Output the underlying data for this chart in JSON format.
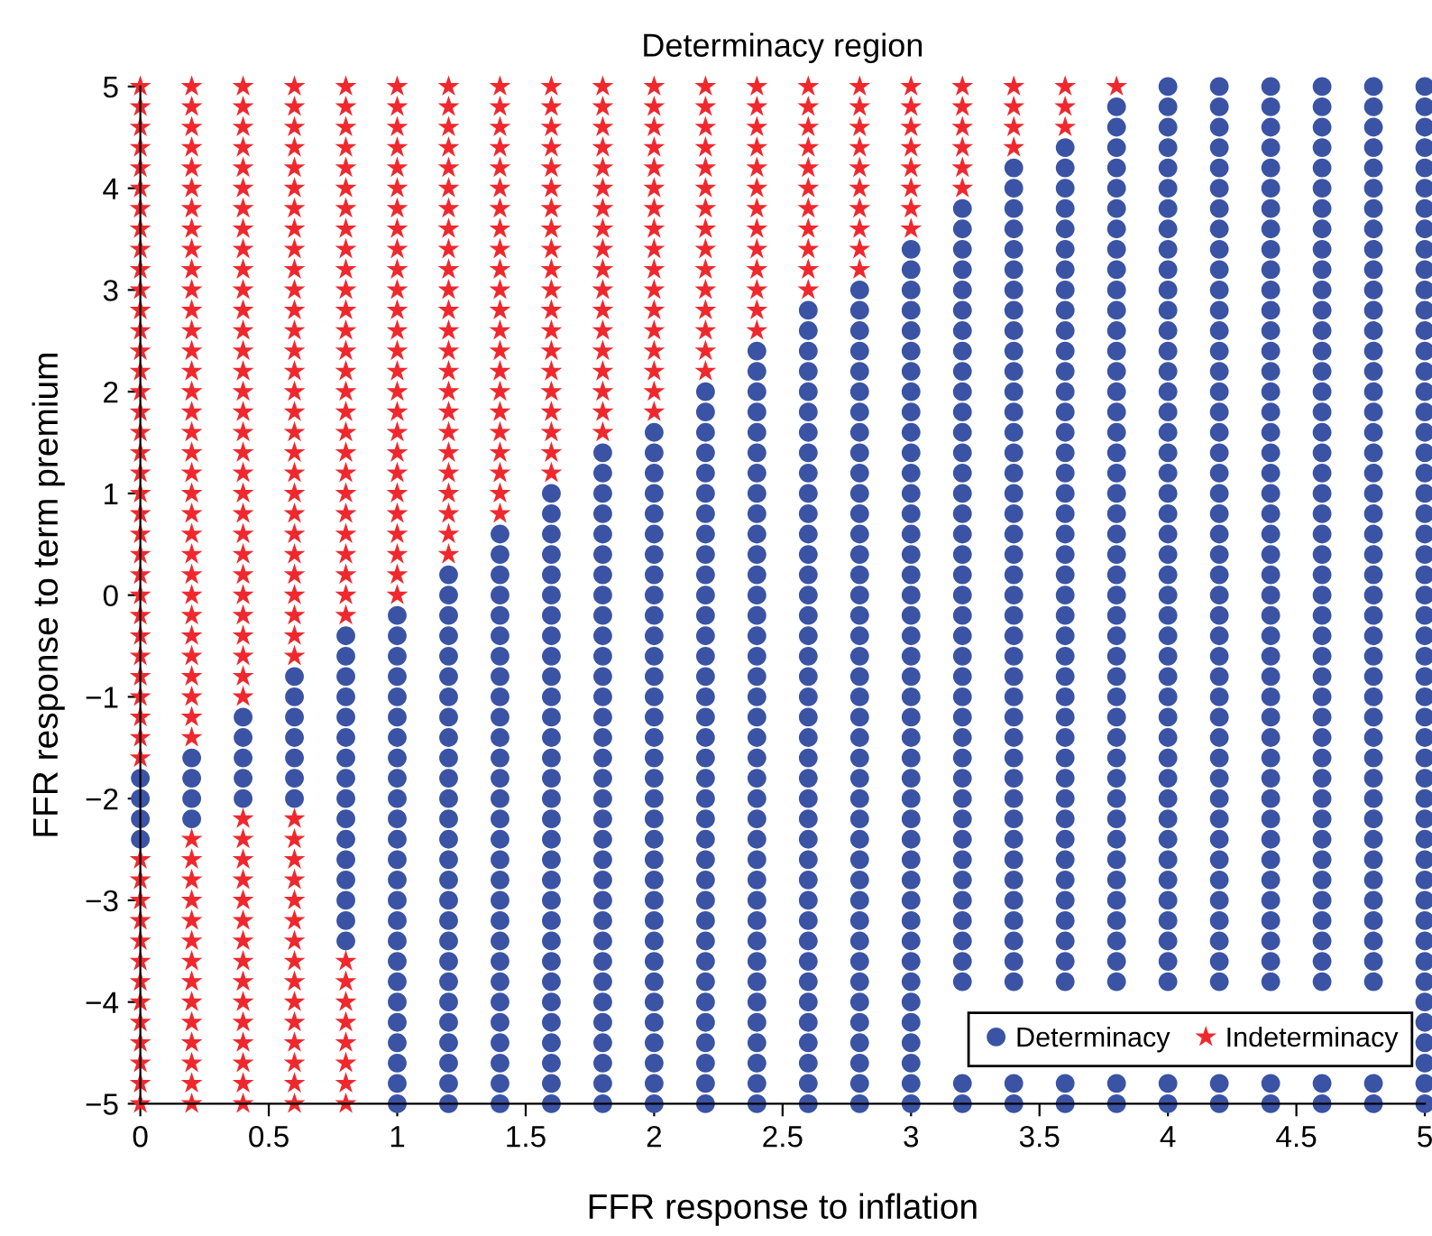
{
  "chart_data": {
    "type": "scatter",
    "title": "Determinacy region",
    "xlabel": "FFR response to inflation",
    "ylabel": "FFR response to term premium",
    "xlim": [
      0,
      5
    ],
    "ylim": [
      -5,
      5
    ],
    "xticks": [
      0,
      0.5,
      1,
      1.5,
      2,
      2.5,
      3,
      3.5,
      4,
      4.5,
      5
    ],
    "yticks": [
      {
        "value": -5,
        "label": "−5"
      },
      {
        "value": -4,
        "label": "−4"
      },
      {
        "value": -3,
        "label": "−3"
      },
      {
        "value": -2,
        "label": "−2"
      },
      {
        "value": -1,
        "label": "−1"
      },
      0,
      1,
      2,
      3,
      4,
      5
    ],
    "grid": false,
    "legend": "bottom right",
    "series": [
      {
        "name": "Determinacy",
        "color": "#3a53a4",
        "marker": "circle",
        "x": [
          0,
          0,
          0,
          0,
          0.2,
          0.2,
          0.2,
          0.2,
          0.4,
          0.4,
          0.4,
          0.4,
          0.4,
          0.6,
          0.6,
          0.6,
          0.6,
          0.6,
          0.6,
          0.6,
          0.8,
          0.8,
          0.8,
          0.8,
          0.8,
          0.8,
          0.8,
          0.8,
          0.8,
          0.8,
          0.8,
          0.8,
          0.8,
          0.8,
          0.8,
          0.8,
          1,
          1,
          1,
          1,
          1,
          1,
          1,
          1,
          1,
          1,
          1,
          1,
          1,
          1,
          1,
          1,
          1,
          1,
          1,
          1,
          1,
          1,
          1,
          1,
          1,
          1.2,
          1.2,
          1.2,
          1.2,
          1.2,
          1.2,
          1.2,
          1.2,
          1.2,
          1.2,
          1.2,
          1.2,
          1.2,
          1.2,
          1.2,
          1.2,
          1.2,
          1.2,
          1.2,
          1.2,
          1.2,
          1.2,
          1.2,
          1.2,
          1.2,
          1.2,
          1.2,
          1.4,
          1.4,
          1.4,
          1.4,
          1.4,
          1.4,
          1.4,
          1.4,
          1.4,
          1.4,
          1.4,
          1.4,
          1.4,
          1.4,
          1.4,
          1.4,
          1.4,
          1.4,
          1.4,
          1.4,
          1.4,
          1.4,
          1.4,
          1.4,
          1.4,
          1.4,
          1.4,
          1.4,
          1.4,
          1.6,
          1.6,
          1.6,
          1.6,
          1.6,
          1.6,
          1.6,
          1.6,
          1.6,
          1.6,
          1.6,
          1.6,
          1.6,
          1.6,
          1.6,
          1.6,
          1.6,
          1.6,
          1.6,
          1.6,
          1.6,
          1.6,
          1.6,
          1.6,
          1.6,
          1.6,
          1.6,
          1.6,
          1.6,
          1.6,
          1.6,
          1.8,
          1.8,
          1.8,
          1.8,
          1.8,
          1.8,
          1.8,
          1.8,
          1.8,
          1.8,
          1.8,
          1.8,
          1.8,
          1.8,
          1.8,
          1.8,
          1.8,
          1.8,
          1.8,
          1.8,
          1.8,
          1.8,
          1.8,
          1.8,
          1.8,
          1.8,
          1.8,
          1.8,
          1.8,
          1.8,
          1.8,
          1.8,
          1.8,
          2,
          2,
          2,
          2,
          2,
          2,
          2,
          2,
          2,
          2,
          2,
          2,
          2,
          2,
          2,
          2,
          2,
          2,
          2,
          2,
          2,
          2,
          2,
          2,
          2,
          2,
          2,
          2,
          2,
          2,
          2,
          2,
          2,
          2,
          2.2,
          2.2,
          2.2,
          2.2,
          2.2,
          2.2,
          2.2,
          2.2,
          2.2,
          2.2,
          2.2,
          2.2,
          2.2,
          2.2,
          2.2,
          2.2,
          2.2,
          2.2,
          2.2,
          2.2,
          2.2,
          2.2,
          2.2,
          2.2,
          2.2,
          2.2,
          2.2,
          2.2,
          2.2,
          2.2,
          2.2,
          2.2,
          2.2,
          2.2,
          2.2,
          2.2,
          2.4,
          2.4,
          2.4,
          2.4,
          2.4,
          2.4,
          2.4,
          2.4,
          2.4,
          2.4,
          2.4,
          2.4,
          2.4,
          2.4,
          2.4,
          2.4,
          2.4,
          2.4,
          2.4,
          2.4,
          2.4,
          2.4,
          2.4,
          2.4,
          2.4,
          2.4,
          2.4,
          2.4,
          2.4,
          2.4,
          2.4,
          2.4,
          2.4,
          2.4,
          2.4,
          2.4,
          2.4,
          2.4,
          2.6,
          2.6,
          2.6,
          2.6,
          2.6,
          2.6,
          2.6,
          2.6,
          2.6,
          2.6,
          2.6,
          2.6,
          2.6,
          2.6,
          2.6,
          2.6,
          2.6,
          2.6,
          2.6,
          2.6,
          2.6,
          2.6,
          2.6,
          2.6,
          2.6,
          2.6,
          2.6,
          2.6,
          2.6,
          2.6,
          2.6,
          2.6,
          2.6,
          2.6,
          2.6,
          2.6,
          2.6,
          2.6,
          2.6,
          2.6,
          2.8,
          2.8,
          2.8,
          2.8,
          2.8,
          2.8,
          2.8,
          2.8,
          2.8,
          2.8,
          2.8,
          2.8,
          2.8,
          2.8,
          2.8,
          2.8,
          2.8,
          2.8,
          2.8,
          2.8,
          2.8,
          2.8,
          2.8,
          2.8,
          2.8,
          2.8,
          2.8,
          2.8,
          2.8,
          2.8,
          2.8,
          2.8,
          2.8,
          2.8,
          2.8,
          2.8,
          2.8,
          2.8,
          2.8,
          2.8,
          2.8,
          3,
          3,
          3,
          3,
          3,
          3,
          3,
          3,
          3,
          3,
          3,
          3,
          3,
          3,
          3,
          3,
          3,
          3,
          3,
          3,
          3,
          3,
          3,
          3,
          3,
          3,
          3,
          3,
          3,
          3,
          3,
          3,
          3,
          3,
          3,
          3,
          3,
          3,
          3,
          3,
          3,
          3,
          3,
          3.2,
          3.2,
          3.2,
          3.2,
          3.2,
          3.2,
          3.2,
          3.2,
          3.2,
          3.2,
          3.2,
          3.2,
          3.2,
          3.2,
          3.2,
          3.2,
          3.2,
          3.2,
          3.2,
          3.2,
          3.2,
          3.2,
          3.2,
          3.2,
          3.2,
          3.2,
          3.2,
          3.2,
          3.2,
          3.2,
          3.2,
          3.2,
          3.2,
          3.2,
          3.2,
          3.2,
          3.2,
          3.2,
          3.2,
          3.2,
          3.2,
          3.4,
          3.4,
          3.4,
          3.4,
          3.4,
          3.4,
          3.4,
          3.4,
          3.4,
          3.4,
          3.4,
          3.4,
          3.4,
          3.4,
          3.4,
          3.4,
          3.4,
          3.4,
          3.4,
          3.4,
          3.4,
          3.4,
          3.4,
          3.4,
          3.4,
          3.4,
          3.4,
          3.4,
          3.4,
          3.4,
          3.4,
          3.4,
          3.4,
          3.4,
          3.4,
          3.4,
          3.4,
          3.4,
          3.4,
          3.4,
          3.4,
          3.4,
          3.4,
          3.6,
          3.6,
          3.6,
          3.6,
          3.6,
          3.6,
          3.6,
          3.6,
          3.6,
          3.6,
          3.6,
          3.6,
          3.6,
          3.6,
          3.6,
          3.6,
          3.6,
          3.6,
          3.6,
          3.6,
          3.6,
          3.6,
          3.6,
          3.6,
          3.6,
          3.6,
          3.6,
          3.6,
          3.6,
          3.6,
          3.6,
          3.6,
          3.6,
          3.6,
          3.6,
          3.6,
          3.6,
          3.6,
          3.6,
          3.6,
          3.6,
          3.6,
          3.6,
          3.6,
          3.8,
          3.8,
          3.8,
          3.8,
          3.8,
          3.8,
          3.8,
          3.8,
          3.8,
          3.8,
          3.8,
          3.8,
          3.8,
          3.8,
          3.8,
          3.8,
          3.8,
          3.8,
          3.8,
          3.8,
          3.8,
          3.8,
          3.8,
          3.8,
          3.8,
          3.8,
          3.8,
          3.8,
          3.8,
          3.8,
          3.8,
          3.8,
          3.8,
          3.8,
          3.8,
          3.8,
          3.8,
          3.8,
          3.8,
          3.8,
          3.8,
          3.8,
          3.8,
          3.8,
          3.8,
          3.8,
          4,
          4,
          4,
          4,
          4,
          4,
          4,
          4,
          4,
          4,
          4,
          4,
          4,
          4,
          4,
          4,
          4,
          4,
          4,
          4,
          4,
          4,
          4,
          4,
          4,
          4,
          4,
          4,
          4,
          4,
          4,
          4,
          4,
          4,
          4,
          4,
          4,
          4,
          4,
          4,
          4,
          4,
          4,
          4,
          4,
          4,
          4,
          4.2,
          4.2,
          4.2,
          4.2,
          4.2,
          4.2,
          4.2,
          4.2,
          4.2,
          4.2,
          4.2,
          4.2,
          4.2,
          4.2,
          4.2,
          4.2,
          4.2,
          4.2,
          4.2,
          4.2,
          4.2,
          4.2,
          4.2,
          4.2,
          4.2,
          4.2,
          4.2,
          4.2,
          4.2,
          4.2,
          4.2,
          4.2,
          4.2,
          4.2,
          4.2,
          4.2,
          4.2,
          4.2,
          4.2,
          4.2,
          4.2,
          4.2,
          4.2,
          4.2,
          4.2,
          4.2,
          4.2,
          4.4,
          4.4,
          4.4,
          4.4,
          4.4,
          4.4,
          4.4,
          4.4,
          4.4,
          4.4,
          4.4,
          4.4,
          4.4,
          4.4,
          4.4,
          4.4,
          4.4,
          4.4,
          4.4,
          4.4,
          4.4,
          4.4,
          4.4,
          4.4,
          4.4,
          4.4,
          4.4,
          4.4,
          4.4,
          4.4,
          4.4,
          4.4,
          4.4,
          4.4,
          4.4,
          4.4,
          4.4,
          4.4,
          4.4,
          4.4,
          4.4,
          4.4,
          4.4,
          4.4,
          4.4,
          4.4,
          4.4,
          4.6,
          4.6,
          4.6,
          4.6,
          4.6,
          4.6,
          4.6,
          4.6,
          4.6,
          4.6,
          4.6,
          4.6,
          4.6,
          4.6,
          4.6,
          4.6,
          4.6,
          4.6,
          4.6,
          4.6,
          4.6,
          4.6,
          4.6,
          4.6,
          4.6,
          4.6,
          4.6,
          4.6,
          4.6,
          4.6,
          4.6,
          4.6,
          4.6,
          4.6,
          4.6,
          4.6,
          4.6,
          4.6,
          4.6,
          4.6,
          4.6,
          4.6,
          4.6,
          4.6,
          4.6,
          4.6,
          4.6,
          4.8,
          4.8,
          4.8,
          4.8,
          4.8,
          4.8,
          4.8,
          4.8,
          4.8,
          4.8,
          4.8,
          4.8,
          4.8,
          4.8,
          4.8,
          4.8,
          4.8,
          4.8,
          4.8,
          4.8,
          4.8,
          4.8,
          4.8,
          4.8,
          4.8,
          4.8,
          4.8,
          4.8,
          4.8,
          4.8,
          4.8,
          4.8,
          4.8,
          4.8,
          4.8,
          4.8,
          4.8,
          4.8,
          4.8,
          4.8,
          4.8,
          4.8,
          4.8,
          4.8,
          4.8,
          4.8,
          4.8,
          5,
          5,
          5,
          5,
          5,
          5,
          5,
          5,
          5,
          5,
          5,
          5,
          5,
          5,
          5,
          5,
          5,
          5,
          5,
          5,
          5,
          5,
          5,
          5,
          5,
          5,
          5,
          5,
          5,
          5,
          5,
          5,
          5,
          5,
          5,
          5,
          5,
          5,
          5,
          5,
          5,
          5,
          5,
          5,
          5,
          5,
          5,
          5,
          5,
          5,
          5
        ],
        "values": [
          -2.4,
          -2.2,
          -2,
          -1.8,
          -2.2,
          -2,
          -1.8,
          -1.6,
          -2,
          -1.8,
          -1.6,
          -1.4,
          -1.2,
          -2,
          -1.8,
          -1.6,
          -1.4,
          -1.2,
          -1,
          -0.8,
          -3.4,
          -3.2,
          -3,
          -2.8,
          -2.6,
          -2.4,
          -2.2,
          -2,
          -1.8,
          -1.6,
          -1.4,
          -1.2,
          -1,
          -0.8,
          -0.6,
          -0.4,
          -5,
          -4.8,
          -4.6,
          -4.4,
          -4.2,
          -4,
          -3.8,
          -3.6,
          -3.4,
          -3.2,
          -3,
          -2.8,
          -2.6,
          -2.4,
          -2.2,
          -2,
          -1.8,
          -1.6,
          -1.4,
          -1.2,
          -1,
          -0.8,
          -0.6,
          -0.4,
          -0.2,
          -5,
          -4.8,
          -4.6,
          -4.4,
          -4.2,
          -4,
          -3.8,
          -3.6,
          -3.4,
          -3.2,
          -3,
          -2.8,
          -2.6,
          -2.4,
          -2.2,
          -2,
          -1.8,
          -1.6,
          -1.4,
          -1.2,
          -1,
          -0.8,
          -0.6,
          -0.4,
          -0.2,
          0,
          0.2,
          -5,
          -4.8,
          -4.6,
          -4.4,
          -4.2,
          -4,
          -3.8,
          -3.6,
          -3.4,
          -3.2,
          -3,
          -2.8,
          -2.6,
          -2.4,
          -2.2,
          -2,
          -1.8,
          -1.6,
          -1.4,
          -1.2,
          -1,
          -0.8,
          -0.6,
          -0.4,
          -0.2,
          0,
          0.2,
          0.4,
          0.6,
          -5,
          -4.8,
          -4.6,
          -4.4,
          -4.2,
          -4,
          -3.8,
          -3.6,
          -3.4,
          -3.2,
          -3,
          -2.8,
          -2.6,
          -2.4,
          -2.2,
          -2,
          -1.8,
          -1.6,
          -1.4,
          -1.2,
          -1,
          -0.8,
          -0.6,
          -0.4,
          -0.2,
          0,
          0.2,
          0.4,
          0.6,
          0.8,
          1,
          -5,
          -4.8,
          -4.6,
          -4.4,
          -4.2,
          -4,
          -3.8,
          -3.6,
          -3.4,
          -3.2,
          -3,
          -2.8,
          -2.6,
          -2.4,
          -2.2,
          -2,
          -1.8,
          -1.6,
          -1.4,
          -1.2,
          -1,
          -0.8,
          -0.6,
          -0.4,
          -0.2,
          0,
          0.2,
          0.4,
          0.6,
          0.8,
          1,
          1.2,
          1.4,
          -5,
          -4.8,
          -4.6,
          -4.4,
          -4.2,
          -4,
          -3.8,
          -3.6,
          -3.4,
          -3.2,
          -3,
          -2.8,
          -2.6,
          -2.4,
          -2.2,
          -2,
          -1.8,
          -1.6,
          -1.4,
          -1.2,
          -1,
          -0.8,
          -0.6,
          -0.4,
          -0.2,
          0,
          0.2,
          0.4,
          0.6,
          0.8,
          1,
          1.2,
          1.4,
          1.6,
          -5,
          -4.8,
          -4.6,
          -4.4,
          -4.2,
          -4,
          -3.8,
          -3.6,
          -3.4,
          -3.2,
          -3,
          -2.8,
          -2.6,
          -2.4,
          -2.2,
          -2,
          -1.8,
          -1.6,
          -1.4,
          -1.2,
          -1,
          -0.8,
          -0.6,
          -0.4,
          -0.2,
          0,
          0.2,
          0.4,
          0.6,
          0.8,
          1,
          1.2,
          1.4,
          1.6,
          1.8,
          2,
          -5,
          -4.8,
          -4.6,
          -4.4,
          -4.2,
          -4,
          -3.8,
          -3.6,
          -3.4,
          -3.2,
          -3,
          -2.8,
          -2.6,
          -2.4,
          -2.2,
          -2,
          -1.8,
          -1.6,
          -1.4,
          -1.2,
          -1,
          -0.8,
          -0.6,
          -0.4,
          -0.2,
          0,
          0.2,
          0.4,
          0.6,
          0.8,
          1,
          1.2,
          1.4,
          1.6,
          1.8,
          2,
          2.2,
          2.4,
          -5,
          -4.8,
          -4.6,
          -4.4,
          -4.2,
          -4,
          -3.8,
          -3.6,
          -3.4,
          -3.2,
          -3,
          -2.8,
          -2.6,
          -2.4,
          -2.2,
          -2,
          -1.8,
          -1.6,
          -1.4,
          -1.2,
          -1,
          -0.8,
          -0.6,
          -0.4,
          -0.2,
          0,
          0.2,
          0.4,
          0.6,
          0.8,
          1,
          1.2,
          1.4,
          1.6,
          1.8,
          2,
          2.2,
          2.4,
          2.6,
          2.8,
          -5,
          -4.8,
          -4.6,
          -4.4,
          -4.2,
          -4,
          -3.8,
          -3.6,
          -3.4,
          -3.2,
          -3,
          -2.8,
          -2.6,
          -2.4,
          -2.2,
          -2,
          -1.8,
          -1.6,
          -1.4,
          -1.2,
          -1,
          -0.8,
          -0.6,
          -0.4,
          -0.2,
          0,
          0.2,
          0.4,
          0.6,
          0.8,
          1,
          1.2,
          1.4,
          1.6,
          1.8,
          2,
          2.2,
          2.4,
          2.6,
          2.8,
          3,
          -5,
          -4.8,
          -4.6,
          -4.4,
          -4.2,
          -4,
          -3.8,
          -3.6,
          -3.4,
          -3.2,
          -3,
          -2.8,
          -2.6,
          -2.4,
          -2.2,
          -2,
          -1.8,
          -1.6,
          -1.4,
          -1.2,
          -1,
          -0.8,
          -0.6,
          -0.4,
          -0.2,
          0,
          0.2,
          0.4,
          0.6,
          0.8,
          1,
          1.2,
          1.4,
          1.6,
          1.8,
          2,
          2.2,
          2.4,
          2.6,
          2.8,
          3,
          3.2,
          3.4,
          -5,
          -4.8,
          -3.8,
          -3.6,
          -3.4,
          -3.2,
          -3,
          -2.8,
          -2.6,
          -2.4,
          -2.2,
          -2,
          -1.8,
          -1.6,
          -1.4,
          -1.2,
          -1,
          -0.8,
          -0.6,
          -0.4,
          -0.2,
          0,
          0.2,
          0.4,
          0.6,
          0.8,
          1,
          1.2,
          1.4,
          1.6,
          1.8,
          2,
          2.2,
          2.4,
          2.6,
          2.8,
          3,
          3.2,
          3.4,
          3.6,
          3.8,
          -5,
          -4.8,
          -3.8,
          -3.6,
          -3.4,
          -3.2,
          -3,
          -2.8,
          -2.6,
          -2.4,
          -2.2,
          -2,
          -1.8,
          -1.6,
          -1.4,
          -1.2,
          -1,
          -0.8,
          -0.6,
          -0.4,
          -0.2,
          0,
          0.2,
          0.4,
          0.6,
          0.8,
          1,
          1.2,
          1.4,
          1.6,
          1.8,
          2,
          2.2,
          2.4,
          2.6,
          2.8,
          3,
          3.2,
          3.4,
          3.6,
          3.8,
          4,
          4.2,
          -5,
          -4.8,
          -3.8,
          -3.6,
          -3.4,
          -3.2,
          -3,
          -2.8,
          -2.6,
          -2.4,
          -2.2,
          -2,
          -1.8,
          -1.6,
          -1.4,
          -1.2,
          -1,
          -0.8,
          -0.6,
          -0.4,
          -0.2,
          0,
          0.2,
          0.4,
          0.6,
          0.8,
          1,
          1.2,
          1.4,
          1.6,
          1.8,
          2,
          2.2,
          2.4,
          2.6,
          2.8,
          3,
          3.2,
          3.4,
          3.6,
          3.8,
          4,
          4.2,
          4.4,
          -5,
          -4.8,
          -3.8,
          -3.6,
          -3.4,
          -3.2,
          -3,
          -2.8,
          -2.6,
          -2.4,
          -2.2,
          -2,
          -1.8,
          -1.6,
          -1.4,
          -1.2,
          -1,
          -0.8,
          -0.6,
          -0.4,
          -0.2,
          0,
          0.2,
          0.4,
          0.6,
          0.8,
          1,
          1.2,
          1.4,
          1.6,
          1.8,
          2,
          2.2,
          2.4,
          2.6,
          2.8,
          3,
          3.2,
          3.4,
          3.6,
          3.8,
          4,
          4.2,
          4.4,
          4.6,
          4.8,
          -5,
          -4.8,
          -3.8,
          -3.6,
          -3.4,
          -3.2,
          -3,
          -2.8,
          -2.6,
          -2.4,
          -2.2,
          -2,
          -1.8,
          -1.6,
          -1.4,
          -1.2,
          -1,
          -0.8,
          -0.6,
          -0.4,
          -0.2,
          0,
          0.2,
          0.4,
          0.6,
          0.8,
          1,
          1.2,
          1.4,
          1.6,
          1.8,
          2,
          2.2,
          2.4,
          2.6,
          2.8,
          3,
          3.2,
          3.4,
          3.6,
          3.8,
          4,
          4.2,
          4.4,
          4.6,
          4.8,
          5,
          -5,
          -4.8,
          -3.8,
          -3.6,
          -3.4,
          -3.2,
          -3,
          -2.8,
          -2.6,
          -2.4,
          -2.2,
          -2,
          -1.8,
          -1.6,
          -1.4,
          -1.2,
          -1,
          -0.8,
          -0.6,
          -0.4,
          -0.2,
          0,
          0.2,
          0.4,
          0.6,
          0.8,
          1,
          1.2,
          1.4,
          1.6,
          1.8,
          2,
          2.2,
          2.4,
          2.6,
          2.8,
          3,
          3.2,
          3.4,
          3.6,
          3.8,
          4,
          4.2,
          4.4,
          4.6,
          4.8,
          5,
          -5,
          -4.8,
          -3.8,
          -3.6,
          -3.4,
          -3.2,
          -3,
          -2.8,
          -2.6,
          -2.4,
          -2.2,
          -2,
          -1.8,
          -1.6,
          -1.4,
          -1.2,
          -1,
          -0.8,
          -0.6,
          -0.4,
          -0.2,
          0,
          0.2,
          0.4,
          0.6,
          0.8,
          1,
          1.2,
          1.4,
          1.6,
          1.8,
          2,
          2.2,
          2.4,
          2.6,
          2.8,
          3,
          3.2,
          3.4,
          3.6,
          3.8,
          4,
          4.2,
          4.4,
          4.6,
          4.8,
          5,
          -5,
          -4.8,
          -3.8,
          -3.6,
          -3.4,
          -3.2,
          -3,
          -2.8,
          -2.6,
          -2.4,
          -2.2,
          -2,
          -1.8,
          -1.6,
          -1.4,
          -1.2,
          -1,
          -0.8,
          -0.6,
          -0.4,
          -0.2,
          0,
          0.2,
          0.4,
          0.6,
          0.8,
          1,
          1.2,
          1.4,
          1.6,
          1.8,
          2,
          2.2,
          2.4,
          2.6,
          2.8,
          3,
          3.2,
          3.4,
          3.6,
          3.8,
          4,
          4.2,
          4.4,
          4.6,
          4.8,
          5,
          -5,
          -4.8,
          -3.8,
          -3.6,
          -3.4,
          -3.2,
          -3,
          -2.8,
          -2.6,
          -2.4,
          -2.2,
          -2,
          -1.8,
          -1.6,
          -1.4,
          -1.2,
          -1,
          -0.8,
          -0.6,
          -0.4,
          -0.2,
          0,
          0.2,
          0.4,
          0.6,
          0.8,
          1,
          1.2,
          1.4,
          1.6,
          1.8,
          2,
          2.2,
          2.4,
          2.6,
          2.8,
          3,
          3.2,
          3.4,
          3.6,
          3.8,
          4,
          4.2,
          4.4,
          4.6,
          4.8,
          5,
          -5,
          -4.8,
          -4.6,
          -4.4,
          -4.2,
          -4,
          -3.8,
          -3.6,
          -3.4,
          -3.2,
          -3,
          -2.8,
          -2.6,
          -2.4,
          -2.2,
          -2,
          -1.8,
          -1.6,
          -1.4,
          -1.2,
          -1,
          -0.8,
          -0.6,
          -0.4,
          -0.2,
          0,
          0.2,
          0.4,
          0.6,
          0.8,
          1,
          1.2,
          1.4,
          1.6,
          1.8,
          2,
          2.2,
          2.4,
          2.6,
          2.8,
          3,
          3.2,
          3.4,
          3.6,
          3.8,
          4,
          4.2,
          4.4,
          4.6,
          4.8,
          5
        ]
      },
      {
        "name": "Indeterminacy",
        "color": "#f0282d",
        "marker": "star",
        "x": [
          0,
          0,
          0,
          0,
          0,
          0,
          0,
          0,
          0,
          0,
          0,
          0,
          0,
          0,
          0,
          0,
          0,
          0,
          0,
          0,
          0,
          0,
          0,
          0,
          0,
          0,
          0,
          0,
          0,
          0,
          0,
          0,
          0,
          0,
          0,
          0,
          0,
          0,
          0,
          0,
          0,
          0,
          0,
          0,
          0,
          0,
          0,
          0.2,
          0.2,
          0.2,
          0.2,
          0.2,
          0.2,
          0.2,
          0.2,
          0.2,
          0.2,
          0.2,
          0.2,
          0.2,
          0.2,
          0.2,
          0.2,
          0.2,
          0.2,
          0.2,
          0.2,
          0.2,
          0.2,
          0.2,
          0.2,
          0.2,
          0.2,
          0.2,
          0.2,
          0.2,
          0.2,
          0.2,
          0.2,
          0.2,
          0.2,
          0.2,
          0.2,
          0.2,
          0.2,
          0.2,
          0.2,
          0.2,
          0.2,
          0.2,
          0.2,
          0.2,
          0.2,
          0.2,
          0.4,
          0.4,
          0.4,
          0.4,
          0.4,
          0.4,
          0.4,
          0.4,
          0.4,
          0.4,
          0.4,
          0.4,
          0.4,
          0.4,
          0.4,
          0.4,
          0.4,
          0.4,
          0.4,
          0.4,
          0.4,
          0.4,
          0.4,
          0.4,
          0.4,
          0.4,
          0.4,
          0.4,
          0.4,
          0.4,
          0.4,
          0.4,
          0.4,
          0.4,
          0.4,
          0.4,
          0.4,
          0.4,
          0.4,
          0.4,
          0.4,
          0.4,
          0.4,
          0.4,
          0.4,
          0.4,
          0.6,
          0.6,
          0.6,
          0.6,
          0.6,
          0.6,
          0.6,
          0.6,
          0.6,
          0.6,
          0.6,
          0.6,
          0.6,
          0.6,
          0.6,
          0.6,
          0.6,
          0.6,
          0.6,
          0.6,
          0.6,
          0.6,
          0.6,
          0.6,
          0.6,
          0.6,
          0.6,
          0.6,
          0.6,
          0.6,
          0.6,
          0.6,
          0.6,
          0.6,
          0.6,
          0.6,
          0.6,
          0.6,
          0.6,
          0.6,
          0.6,
          0.6,
          0.6,
          0.6,
          0.8,
          0.8,
          0.8,
          0.8,
          0.8,
          0.8,
          0.8,
          0.8,
          0.8,
          0.8,
          0.8,
          0.8,
          0.8,
          0.8,
          0.8,
          0.8,
          0.8,
          0.8,
          0.8,
          0.8,
          0.8,
          0.8,
          0.8,
          0.8,
          0.8,
          0.8,
          0.8,
          0.8,
          0.8,
          0.8,
          0.8,
          0.8,
          0.8,
          0.8,
          0.8,
          1,
          1,
          1,
          1,
          1,
          1,
          1,
          1,
          1,
          1,
          1,
          1,
          1,
          1,
          1,
          1,
          1,
          1,
          1,
          1,
          1,
          1,
          1,
          1,
          1,
          1,
          1.2,
          1.2,
          1.2,
          1.2,
          1.2,
          1.2,
          1.2,
          1.2,
          1.2,
          1.2,
          1.2,
          1.2,
          1.2,
          1.2,
          1.2,
          1.2,
          1.2,
          1.2,
          1.2,
          1.2,
          1.2,
          1.2,
          1.2,
          1.2,
          1.4,
          1.4,
          1.4,
          1.4,
          1.4,
          1.4,
          1.4,
          1.4,
          1.4,
          1.4,
          1.4,
          1.4,
          1.4,
          1.4,
          1.4,
          1.4,
          1.4,
          1.4,
          1.4,
          1.4,
          1.4,
          1.4,
          1.6,
          1.6,
          1.6,
          1.6,
          1.6,
          1.6,
          1.6,
          1.6,
          1.6,
          1.6,
          1.6,
          1.6,
          1.6,
          1.6,
          1.6,
          1.6,
          1.6,
          1.6,
          1.6,
          1.6,
          1.8,
          1.8,
          1.8,
          1.8,
          1.8,
          1.8,
          1.8,
          1.8,
          1.8,
          1.8,
          1.8,
          1.8,
          1.8,
          1.8,
          1.8,
          1.8,
          1.8,
          1.8,
          2,
          2,
          2,
          2,
          2,
          2,
          2,
          2,
          2,
          2,
          2,
          2,
          2,
          2,
          2,
          2,
          2,
          2.2,
          2.2,
          2.2,
          2.2,
          2.2,
          2.2,
          2.2,
          2.2,
          2.2,
          2.2,
          2.2,
          2.2,
          2.2,
          2.2,
          2.2,
          2.4,
          2.4,
          2.4,
          2.4,
          2.4,
          2.4,
          2.4,
          2.4,
          2.4,
          2.4,
          2.4,
          2.4,
          2.4,
          2.6,
          2.6,
          2.6,
          2.6,
          2.6,
          2.6,
          2.6,
          2.6,
          2.6,
          2.6,
          2.6,
          2.8,
          2.8,
          2.8,
          2.8,
          2.8,
          2.8,
          2.8,
          2.8,
          2.8,
          2.8,
          3,
          3,
          3,
          3,
          3,
          3,
          3,
          3,
          3.2,
          3.2,
          3.2,
          3.2,
          3.2,
          3.2,
          3.4,
          3.4,
          3.4,
          3.4,
          3.6,
          3.6,
          3.6,
          3.8
        ],
        "values": [
          -5,
          -4.8,
          -4.6,
          -4.4,
          -4.2,
          -4,
          -3.8,
          -3.6,
          -3.4,
          -3.2,
          -3,
          -2.8,
          -2.6,
          -1.6,
          -1.4,
          -1.2,
          -1,
          -0.8,
          -0.6,
          -0.4,
          -0.2,
          0,
          0.2,
          0.4,
          0.6,
          0.8,
          1,
          1.2,
          1.4,
          1.6,
          1.8,
          2,
          2.2,
          2.4,
          2.6,
          2.8,
          3,
          3.2,
          3.4,
          3.6,
          3.8,
          4,
          4.2,
          4.4,
          4.6,
          4.8,
          5,
          -5,
          -4.8,
          -4.6,
          -4.4,
          -4.2,
          -4,
          -3.8,
          -3.6,
          -3.4,
          -3.2,
          -3,
          -2.8,
          -2.6,
          -2.4,
          -1.4,
          -1.2,
          -1,
          -0.8,
          -0.6,
          -0.4,
          -0.2,
          0,
          0.2,
          0.4,
          0.6,
          0.8,
          1,
          1.2,
          1.4,
          1.6,
          1.8,
          2,
          2.2,
          2.4,
          2.6,
          2.8,
          3,
          3.2,
          3.4,
          3.6,
          3.8,
          4,
          4.2,
          4.4,
          4.6,
          4.8,
          5,
          -5,
          -4.8,
          -4.6,
          -4.4,
          -4.2,
          -4,
          -3.8,
          -3.6,
          -3.4,
          -3.2,
          -3,
          -2.8,
          -2.6,
          -2.4,
          -2.2,
          -1,
          -0.8,
          -0.6,
          -0.4,
          -0.2,
          0,
          0.2,
          0.4,
          0.6,
          0.8,
          1,
          1.2,
          1.4,
          1.6,
          1.8,
          2,
          2.2,
          2.4,
          2.6,
          2.8,
          3,
          3.2,
          3.4,
          3.6,
          3.8,
          4,
          4.2,
          4.4,
          4.6,
          4.8,
          5,
          -5,
          -4.8,
          -4.6,
          -4.4,
          -4.2,
          -4,
          -3.8,
          -3.6,
          -3.4,
          -3.2,
          -3,
          -2.8,
          -2.6,
          -2.4,
          -2.2,
          -0.6,
          -0.4,
          -0.2,
          0,
          0.2,
          0.4,
          0.6,
          0.8,
          1,
          1.2,
          1.4,
          1.6,
          1.8,
          2,
          2.2,
          2.4,
          2.6,
          2.8,
          3,
          3.2,
          3.4,
          3.6,
          3.8,
          4,
          4.2,
          4.4,
          4.6,
          4.8,
          5,
          -5,
          -4.8,
          -4.6,
          -4.4,
          -4.2,
          -4,
          -3.8,
          -3.6,
          -0.2,
          0,
          0.2,
          0.4,
          0.6,
          0.8,
          1,
          1.2,
          1.4,
          1.6,
          1.8,
          2,
          2.2,
          2.4,
          2.6,
          2.8,
          3,
          3.2,
          3.4,
          3.6,
          3.8,
          4,
          4.2,
          4.4,
          4.6,
          4.8,
          5,
          0,
          0.2,
          0.4,
          0.6,
          0.8,
          1,
          1.2,
          1.4,
          1.6,
          1.8,
          2,
          2.2,
          2.4,
          2.6,
          2.8,
          3,
          3.2,
          3.4,
          3.6,
          3.8,
          4,
          4.2,
          4.4,
          4.6,
          4.8,
          5,
          0.4,
          0.6,
          0.8,
          1,
          1.2,
          1.4,
          1.6,
          1.8,
          2,
          2.2,
          2.4,
          2.6,
          2.8,
          3,
          3.2,
          3.4,
          3.6,
          3.8,
          4,
          4.2,
          4.4,
          4.6,
          4.8,
          5,
          0.8,
          1,
          1.2,
          1.4,
          1.6,
          1.8,
          2,
          2.2,
          2.4,
          2.6,
          2.8,
          3,
          3.2,
          3.4,
          3.6,
          3.8,
          4,
          4.2,
          4.4,
          4.6,
          4.8,
          5,
          1.2,
          1.4,
          1.6,
          1.8,
          2,
          2.2,
          2.4,
          2.6,
          2.8,
          3,
          3.2,
          3.4,
          3.6,
          3.8,
          4,
          4.2,
          4.4,
          4.6,
          4.8,
          5,
          1.6,
          1.8,
          2,
          2.2,
          2.4,
          2.6,
          2.8,
          3,
          3.2,
          3.4,
          3.6,
          3.8,
          4,
          4.2,
          4.4,
          4.6,
          4.8,
          5,
          1.8,
          2,
          2.2,
          2.4,
          2.6,
          2.8,
          3,
          3.2,
          3.4,
          3.6,
          3.8,
          4,
          4.2,
          4.4,
          4.6,
          4.8,
          5,
          2.2,
          2.4,
          2.6,
          2.8,
          3,
          3.2,
          3.4,
          3.6,
          3.8,
          4,
          4.2,
          4.4,
          4.6,
          4.8,
          5,
          2.6,
          2.8,
          3,
          3.2,
          3.4,
          3.6,
          3.8,
          4,
          4.2,
          4.4,
          4.6,
          4.8,
          5,
          3,
          3.2,
          3.4,
          3.6,
          3.8,
          4,
          4.2,
          4.4,
          4.6,
          4.8,
          5,
          3.2,
          3.4,
          3.6,
          3.8,
          4,
          4.2,
          4.4,
          4.6,
          4.8,
          5,
          3.6,
          3.8,
          4,
          4.2,
          4.4,
          4.6,
          4.8,
          5,
          4,
          4.2,
          4.4,
          4.6,
          4.8,
          5,
          4.4,
          4.6,
          4.8,
          5,
          4.6,
          4.8,
          5,
          5
        ]
      }
    ]
  }
}
